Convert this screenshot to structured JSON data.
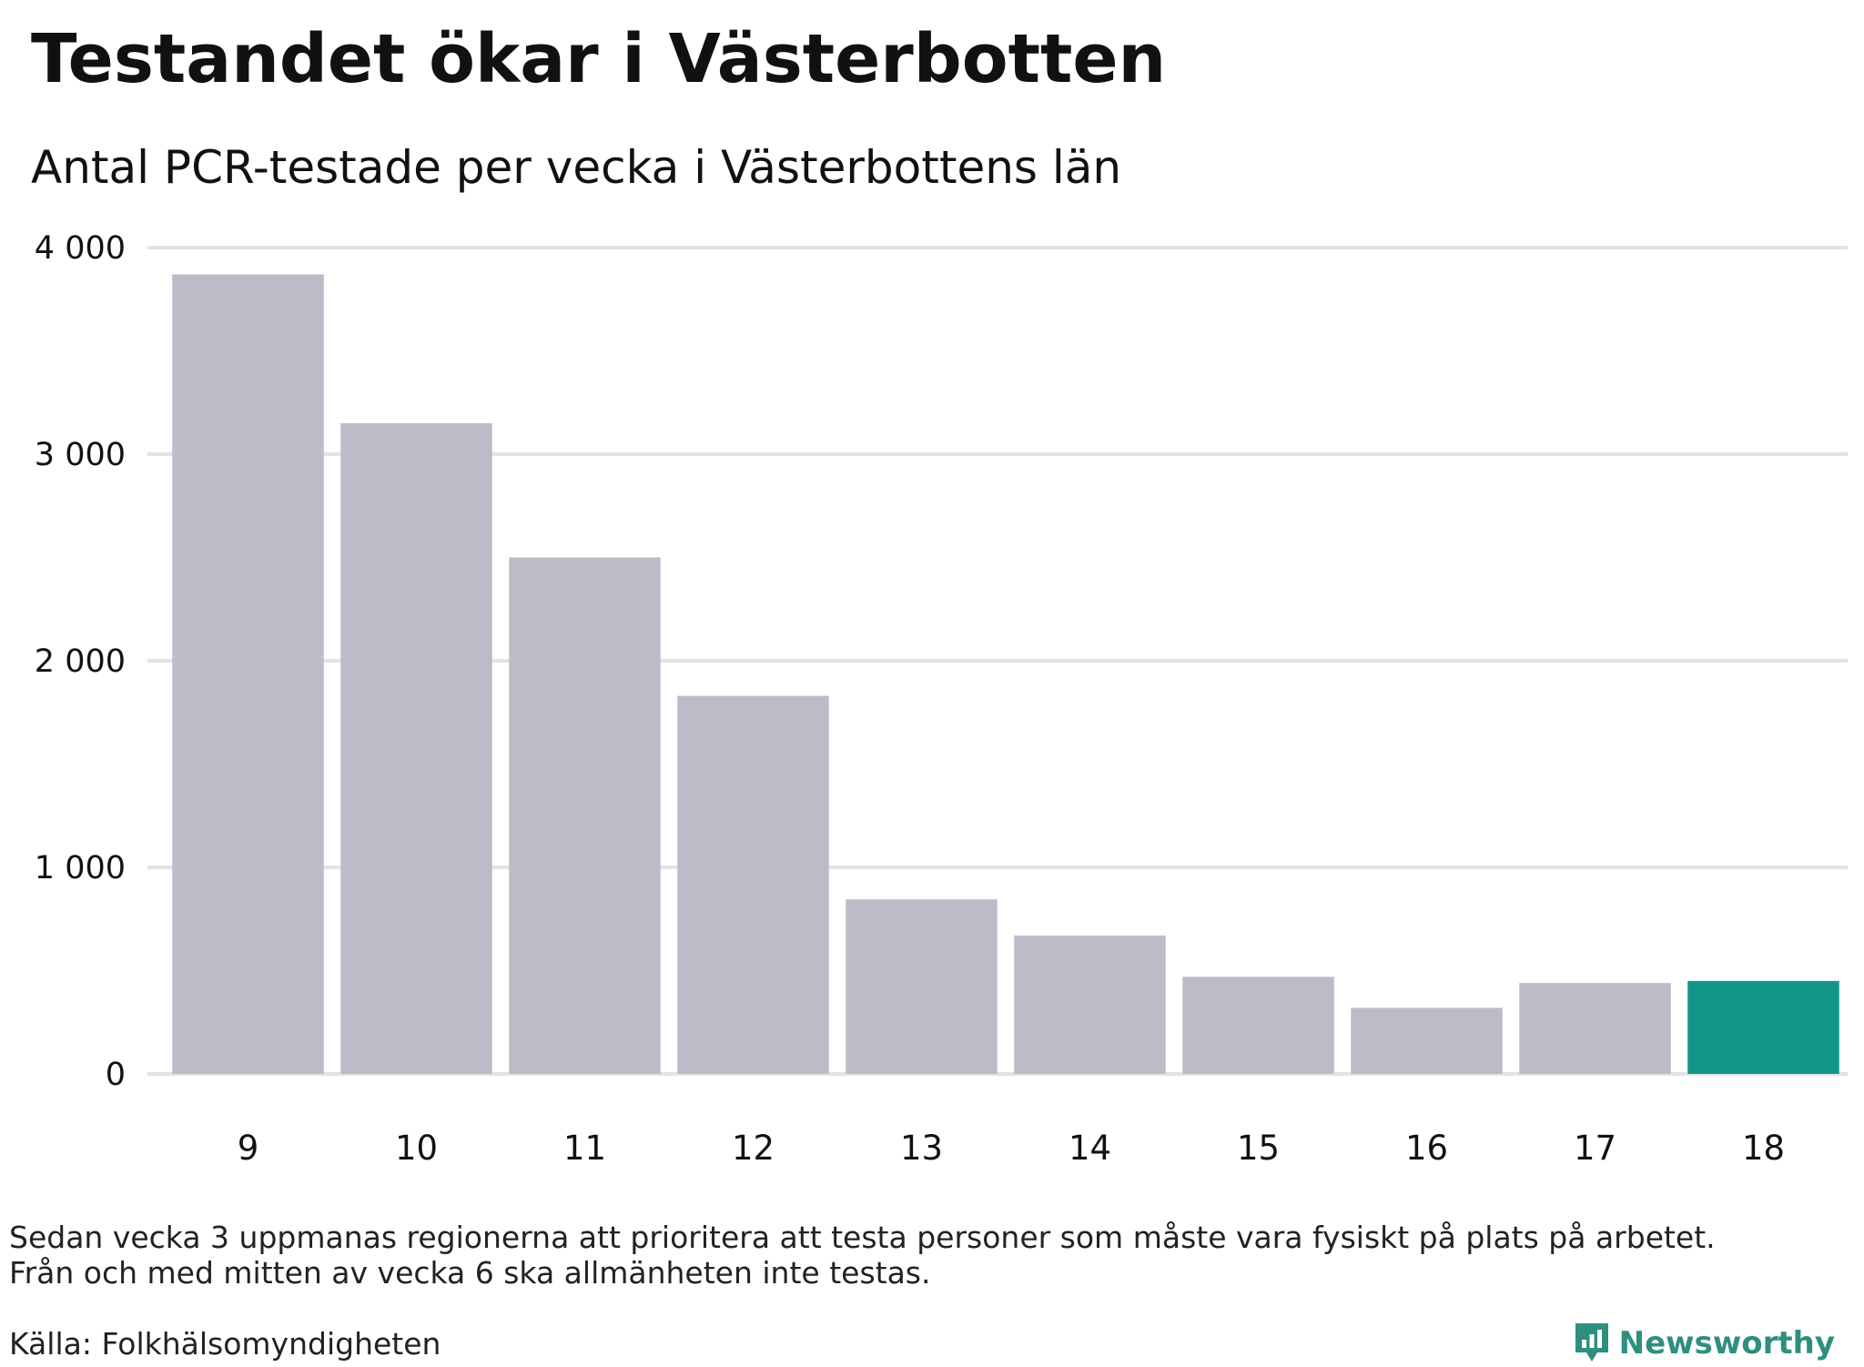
{
  "header": {
    "title": "Testandet ökar i Västerbotten",
    "subtitle": "Antal PCR-testade per vecka i Västerbottens län"
  },
  "chart_data": {
    "type": "bar",
    "title": "Testandet ökar i Västerbotten",
    "subtitle": "Antal PCR-testade per vecka i Västerbottens län",
    "xlabel": "",
    "ylabel": "",
    "categories": [
      "9",
      "10",
      "11",
      "12",
      "13",
      "14",
      "15",
      "16",
      "17",
      "18"
    ],
    "values": [
      3870,
      3150,
      2500,
      1830,
      845,
      670,
      470,
      320,
      440,
      450
    ],
    "ylim": [
      0,
      4000
    ],
    "yticks": [
      0,
      1000,
      2000,
      3000,
      4000
    ],
    "ytick_labels": [
      "0",
      "1 000",
      "2 000",
      "3 000",
      "4 000"
    ],
    "grid": true,
    "legend": "none",
    "bar_color": "#bcbbc8",
    "highlight_color": "#13968a",
    "highlight_index": 9,
    "gridline_color": "#e3e3e6"
  },
  "footer": {
    "note_lines": [
      "Sedan vecka 3 uppmanas regionerna att prioritera att testa personer som måste vara fysiskt på plats på arbetet.",
      "Från och med mitten av vecka 6 ska allmänheten inte testas."
    ],
    "source": "Källa: Folkhälsomyndigheten",
    "brand_name": "Newsworthy",
    "brand_icon": "newsworthy-logo-icon",
    "brand_color": "#2f8f7f"
  }
}
